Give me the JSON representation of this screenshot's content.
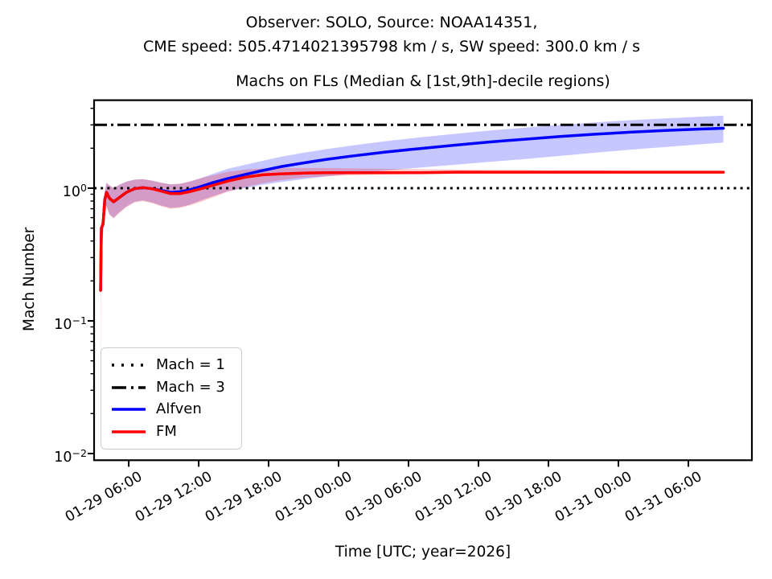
{
  "figure": {
    "suptitle_line1": "Observer: SOLO, Source: NOAA14351,",
    "suptitle_line2": "CME speed: 505.4714021395798 km / s, SW speed: 300.0 km / s"
  },
  "chart_data": {
    "type": "line",
    "title": "Machs on FLs (Median & [1st,9th]-decile regions)",
    "xlabel": "Time [UTC; year=2026]",
    "ylabel": "Mach Number",
    "yscale": "log",
    "ylim": [
      0.0089,
      4.6
    ],
    "x_unit": "hours since 2026-01-29 00:00 UTC",
    "xlim_hours": [
      3.03,
      59.45
    ],
    "grid": false,
    "legend_position": "lower left",
    "xticks": [
      {
        "t": 6,
        "label": "01-29 06:00"
      },
      {
        "t": 12,
        "label": "01-29 12:00"
      },
      {
        "t": 18,
        "label": "01-29 18:00"
      },
      {
        "t": 24,
        "label": "01-30 00:00"
      },
      {
        "t": 30,
        "label": "01-30 06:00"
      },
      {
        "t": 36,
        "label": "01-30 12:00"
      },
      {
        "t": 42,
        "label": "01-30 18:00"
      },
      {
        "t": 48,
        "label": "01-31 00:00"
      },
      {
        "t": 54,
        "label": "01-31 06:00"
      }
    ],
    "yticks": [
      {
        "value": 1,
        "mantissa": "10",
        "exponent": "0"
      },
      {
        "value": 0.1,
        "mantissa": "10",
        "exponent": "−1"
      },
      {
        "value": 0.01,
        "mantissa": "10",
        "exponent": "−2"
      }
    ],
    "hlines": [
      {
        "value": 1,
        "label": "Mach = 1",
        "style": "dotted",
        "color": "#000000"
      },
      {
        "value": 3,
        "label": "Mach = 3",
        "style": "dashdot",
        "color": "#000000"
      }
    ],
    "series": [
      {
        "name": "Alfven",
        "color": "#0000ff",
        "band_color": "rgba(0,0,255,0.22)",
        "x_hours": [
          3.59,
          3.62,
          3.66,
          3.8,
          3.95,
          4.1,
          4.35,
          4.7,
          5.2,
          5.8,
          6.5,
          7.2,
          8.0,
          8.8,
          9.6,
          10.4,
          11.2,
          12.2,
          13.2,
          14.5,
          16,
          17.5,
          19,
          21,
          23,
          25,
          28,
          31,
          34,
          37,
          40,
          43,
          46,
          49,
          52,
          55,
          57
        ],
        "median": [
          0.17,
          0.32,
          0.5,
          0.54,
          0.82,
          0.93,
          0.84,
          0.79,
          0.85,
          0.93,
          0.99,
          1.01,
          0.99,
          0.96,
          0.93,
          0.94,
          0.97,
          1.03,
          1.1,
          1.18,
          1.27,
          1.36,
          1.45,
          1.55,
          1.65,
          1.74,
          1.87,
          1.99,
          2.11,
          2.23,
          2.34,
          2.45,
          2.55,
          2.64,
          2.72,
          2.79,
          2.83
        ],
        "decile_upper": [
          0.18,
          0.35,
          0.55,
          0.6,
          0.95,
          1.1,
          1.05,
          1.0,
          1.06,
          1.12,
          1.16,
          1.17,
          1.14,
          1.1,
          1.07,
          1.08,
          1.12,
          1.19,
          1.28,
          1.4,
          1.5,
          1.61,
          1.72,
          1.85,
          1.97,
          2.09,
          2.26,
          2.42,
          2.57,
          2.72,
          2.86,
          3.0,
          3.13,
          3.25,
          3.36,
          3.46,
          3.52
        ],
        "decile_lower": [
          0.16,
          0.28,
          0.44,
          0.47,
          0.68,
          0.74,
          0.64,
          0.6,
          0.66,
          0.73,
          0.79,
          0.81,
          0.78,
          0.74,
          0.71,
          0.72,
          0.75,
          0.81,
          0.87,
          0.95,
          1.0,
          1.06,
          1.11,
          1.17,
          1.23,
          1.28,
          1.36,
          1.43,
          1.5,
          1.58,
          1.66,
          1.75,
          1.85,
          1.95,
          2.04,
          2.14,
          2.21
        ]
      },
      {
        "name": "FM",
        "color": "#ff0000",
        "band_color": "rgba(255,0,0,0.22)",
        "x_hours": [
          3.59,
          3.62,
          3.66,
          3.8,
          3.95,
          4.1,
          4.35,
          4.7,
          5.2,
          5.8,
          6.5,
          7.2,
          8.0,
          8.8,
          9.6,
          10.4,
          11.2,
          12.2,
          13.2,
          14.5,
          16,
          17.5,
          19,
          21,
          23,
          25,
          28,
          31,
          34,
          37,
          40,
          43,
          46,
          49,
          52,
          55,
          57
        ],
        "median": [
          0.17,
          0.32,
          0.5,
          0.54,
          0.82,
          0.93,
          0.84,
          0.79,
          0.85,
          0.93,
          0.99,
          1.01,
          0.99,
          0.95,
          0.91,
          0.91,
          0.94,
          0.99,
          1.05,
          1.13,
          1.21,
          1.26,
          1.28,
          1.3,
          1.31,
          1.31,
          1.31,
          1.31,
          1.32,
          1.32,
          1.32,
          1.32,
          1.32,
          1.32,
          1.32,
          1.32,
          1.32
        ],
        "decile_upper": [
          0.18,
          0.35,
          0.55,
          0.6,
          0.95,
          1.1,
          1.05,
          1.0,
          1.06,
          1.12,
          1.16,
          1.17,
          1.14,
          1.1,
          1.07,
          1.08,
          1.12,
          1.19,
          1.25,
          1.33,
          1.38,
          1.41,
          1.42,
          1.42,
          1.42,
          1.41,
          1.4,
          1.39,
          1.38,
          1.37,
          1.37,
          1.36,
          1.36,
          1.35,
          1.35,
          1.35,
          1.34
        ],
        "decile_lower": [
          0.025,
          0.2,
          0.4,
          0.45,
          0.66,
          0.72,
          0.63,
          0.59,
          0.65,
          0.72,
          0.78,
          0.8,
          0.77,
          0.73,
          0.7,
          0.71,
          0.74,
          0.79,
          0.85,
          0.94,
          1.02,
          1.09,
          1.15,
          1.2,
          1.23,
          1.25,
          1.27,
          1.28,
          1.28,
          1.29,
          1.29,
          1.29,
          1.29,
          1.3,
          1.3,
          1.3,
          1.3
        ]
      }
    ]
  },
  "legend": {
    "items": [
      {
        "label": "Mach = 1",
        "style": "dotted",
        "color": "#000000"
      },
      {
        "label": "Mach = 3",
        "style": "dashdot",
        "color": "#000000"
      },
      {
        "label": "Alfven",
        "style": "solid",
        "color": "#0000ff"
      },
      {
        "label": "FM",
        "style": "solid",
        "color": "#ff0000"
      }
    ]
  }
}
